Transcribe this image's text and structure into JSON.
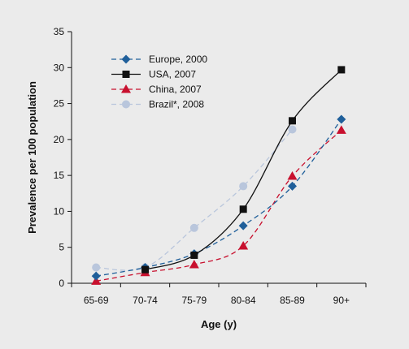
{
  "chart_data": {
    "type": "line",
    "xlabel": "Age (y)",
    "ylabel": "Prevalence per 100 population",
    "ylim": [
      0,
      35
    ],
    "yticks": [
      0,
      5,
      10,
      15,
      20,
      25,
      30,
      35
    ],
    "grid": false,
    "legend_position": "top-left",
    "categories": [
      "65-69",
      "70-74",
      "75-79",
      "80-84",
      "85-89",
      "90+"
    ],
    "series": [
      {
        "name": "Europe, 2000",
        "values": [
          1.0,
          2.2,
          4.1,
          8.0,
          13.5,
          22.8
        ],
        "color": "#1f5f9a",
        "dash": "6,4",
        "marker": "diamond"
      },
      {
        "name": "USA, 2007",
        "values": [
          null,
          1.9,
          3.9,
          10.3,
          22.6,
          29.7
        ],
        "color": "#111111",
        "dash": "",
        "marker": "square"
      },
      {
        "name": "China, 2007",
        "values": [
          0.3,
          1.5,
          2.6,
          5.2,
          14.9,
          21.3
        ],
        "color": "#c8102e",
        "dash": "6,4",
        "marker": "triangle"
      },
      {
        "name": "Brazil*, 2008",
        "values": [
          2.2,
          2.2,
          7.7,
          13.5,
          21.4,
          null
        ],
        "color": "#b9c6dc",
        "dash": "6,4",
        "marker": "circle"
      }
    ]
  }
}
